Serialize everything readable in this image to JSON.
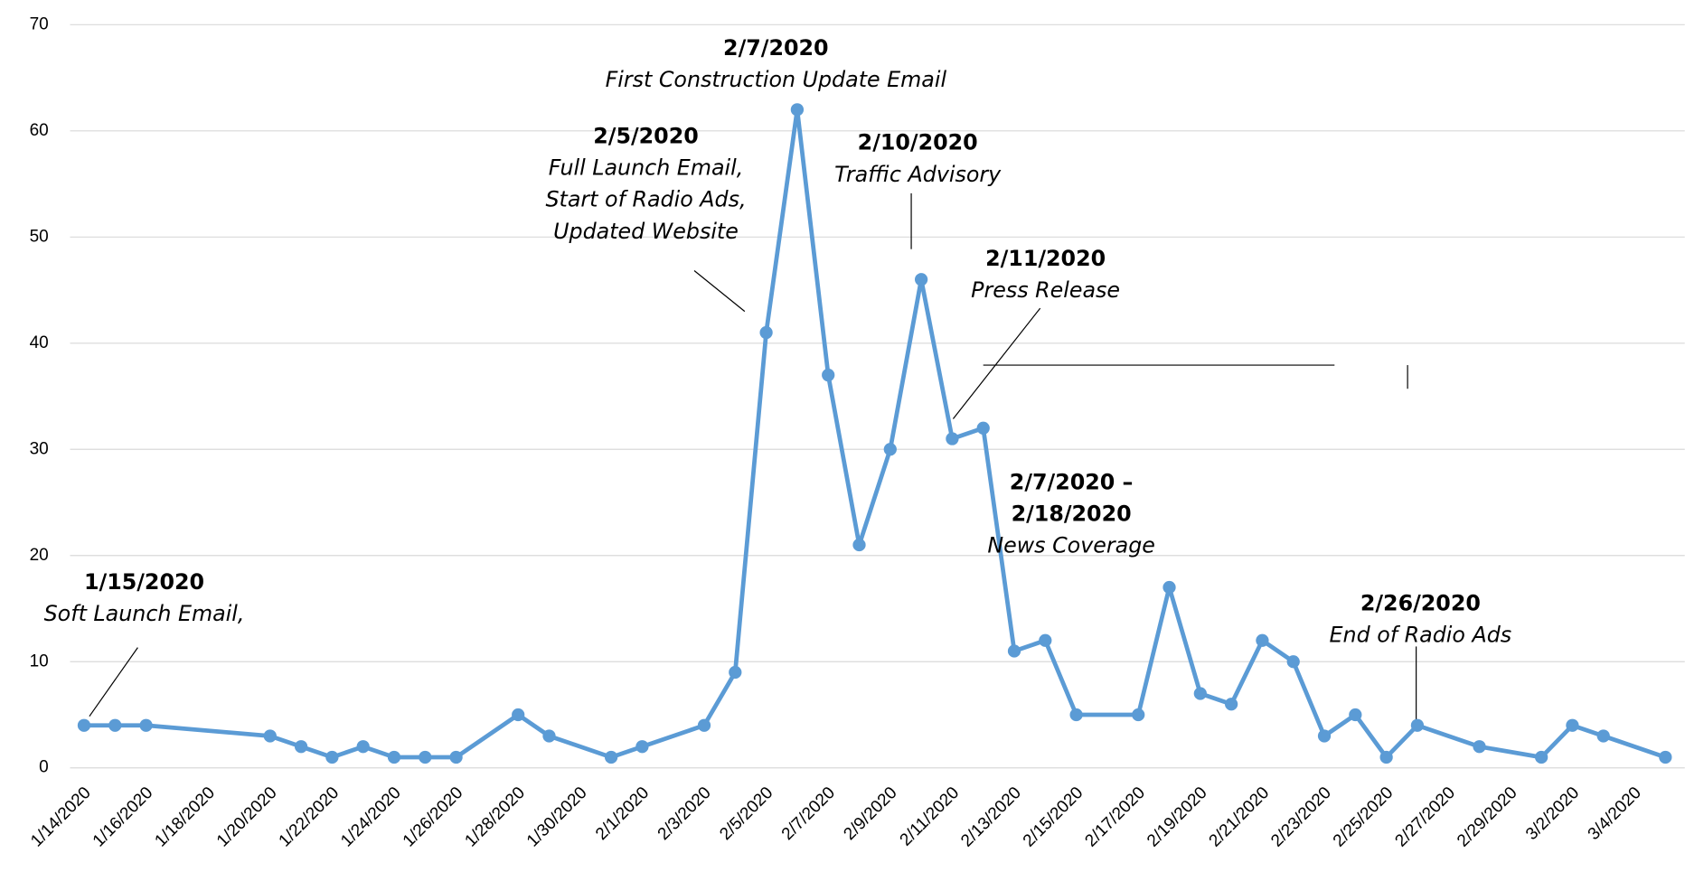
{
  "chart_data": {
    "type": "line",
    "x": [
      "1/14/2020",
      "1/15/2020",
      "1/16/2020",
      "1/20/2020",
      "1/21/2020",
      "1/22/2020",
      "1/23/2020",
      "1/24/2020",
      "1/25/2020",
      "1/26/2020",
      "1/28/2020",
      "1/29/2020",
      "1/31/2020",
      "2/1/2020",
      "2/3/2020",
      "2/4/2020",
      "2/5/2020",
      "2/6/2020",
      "2/7/2020",
      "2/8/2020",
      "2/9/2020",
      "2/10/2020",
      "2/11/2020",
      "2/12/2020",
      "2/13/2020",
      "2/14/2020",
      "2/15/2020",
      "2/17/2020",
      "2/18/2020",
      "2/19/2020",
      "2/20/2020",
      "2/21/2020",
      "2/22/2020",
      "2/23/2020",
      "2/24/2020",
      "2/25/2020",
      "2/26/2020",
      "2/28/2020",
      "3/1/2020",
      "3/2/2020",
      "3/3/2020",
      "3/5/2020"
    ],
    "series": [
      {
        "color": "#5b9bd5",
        "values": [
          4,
          4,
          4,
          3,
          2,
          1,
          2,
          1,
          1,
          1,
          5,
          3,
          1,
          2,
          4,
          9,
          41,
          62,
          37,
          21,
          30,
          46,
          31,
          32,
          11,
          12,
          5,
          5,
          17,
          7,
          6,
          12,
          10,
          3,
          5,
          1,
          4,
          2,
          1,
          4,
          3,
          1
        ]
      }
    ],
    "xlim": [
      "1/14/2020",
      "3/5/2020"
    ],
    "xticks": [
      "1/14/2020",
      "1/16/2020",
      "1/18/2020",
      "1/20/2020",
      "1/22/2020",
      "1/24/2020",
      "1/26/2020",
      "1/28/2020",
      "1/30/2020",
      "2/1/2020",
      "2/3/2020",
      "2/5/2020",
      "2/7/2020",
      "2/9/2020",
      "2/11/2020",
      "2/13/2020",
      "2/15/2020",
      "2/17/2020",
      "2/19/2020",
      "2/21/2020",
      "2/23/2020",
      "2/25/2020",
      "2/27/2020",
      "2/29/2020",
      "3/2/2020",
      "3/4/2020"
    ],
    "ylim": [
      0,
      70
    ],
    "yticks": [
      0,
      10,
      20,
      30,
      40,
      50,
      60,
      70
    ],
    "grid": true,
    "annotations": [
      {
        "bold": [
          "1/15/2020"
        ],
        "italic": [
          "Soft Launch Email,"
        ]
      },
      {
        "bold": [
          "2/5/2020"
        ],
        "italic": [
          "Full Launch Email,",
          "Start of Radio Ads,",
          "Updated Website"
        ]
      },
      {
        "bold": [
          "2/7/2020"
        ],
        "italic": [
          "First Construction Update Email"
        ]
      },
      {
        "bold": [
          "2/10/2020"
        ],
        "italic": [
          "Traffic Advisory"
        ]
      },
      {
        "bold": [
          "2/11/2020"
        ],
        "italic": [
          "Press Release"
        ]
      },
      {
        "bold": [
          "2/7/2020 –",
          "2/18/2020"
        ],
        "italic": [
          "News Coverage"
        ]
      },
      {
        "bold": [
          "2/26/2020"
        ],
        "italic": [
          "End of Radio Ads"
        ]
      }
    ]
  }
}
